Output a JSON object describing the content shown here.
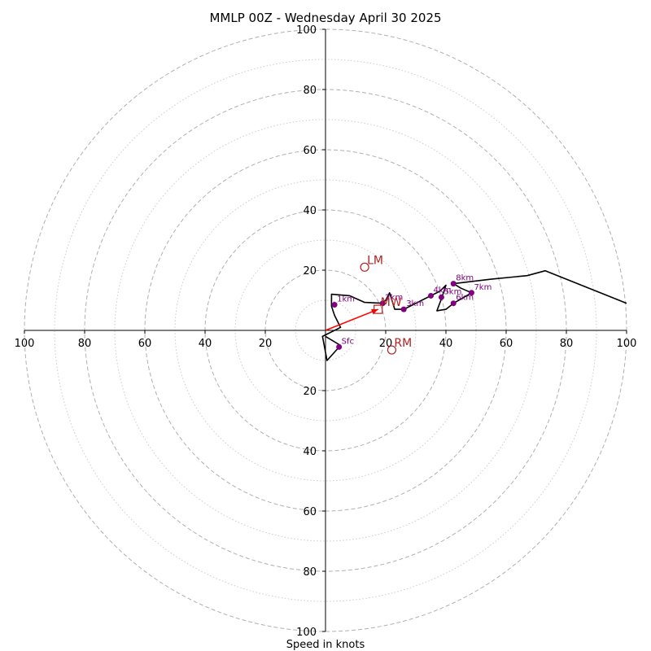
{
  "chart_data": {
    "type": "hodograph",
    "title": "MMLP 00Z - Wednesday April 30 2025",
    "xlabel": "Speed in knots",
    "range": [
      -100,
      100
    ],
    "ring_major": [
      20,
      40,
      60,
      80,
      100
    ],
    "ring_minor": [
      10,
      30,
      50,
      70,
      90
    ],
    "x_tick_labels": [
      "100",
      "80",
      "60",
      "40",
      "20",
      "20",
      "40",
      "60",
      "80",
      "100"
    ],
    "x_tick_values": [
      -100,
      -80,
      -60,
      -40,
      -20,
      20,
      40,
      60,
      80,
      100
    ],
    "y_tick_labels": [
      "100",
      "80",
      "60",
      "40",
      "20",
      "20",
      "40",
      "60",
      "80",
      "100"
    ],
    "y_tick_values": [
      100,
      80,
      60,
      40,
      20,
      -20,
      -40,
      -60,
      -80,
      -100
    ],
    "colors": {
      "trace": "#000000",
      "height_markers": "#800080",
      "storm_motion": "#b22222",
      "mean_wind_vector": "#ff0000",
      "grid": "#b0b0b0"
    },
    "hodograph_trace": [
      [
        0,
        -2
      ],
      [
        5,
        -5
      ],
      [
        0.5,
        -10
      ],
      [
        -1,
        -2
      ],
      [
        5,
        1
      ],
      [
        3,
        5
      ],
      [
        2,
        8
      ],
      [
        2,
        12
      ],
      [
        8,
        11.5
      ],
      [
        13,
        9.3
      ],
      [
        19,
        9
      ],
      [
        20,
        10
      ],
      [
        21.3,
        12.5
      ],
      [
        23,
        7
      ],
      [
        26,
        7
      ],
      [
        30,
        9
      ],
      [
        35,
        11.5
      ],
      [
        38,
        13
      ],
      [
        40,
        15
      ],
      [
        38.5,
        10.5
      ],
      [
        37,
        6.5
      ],
      [
        40,
        7
      ],
      [
        42.5,
        9
      ],
      [
        46,
        11
      ],
      [
        48.5,
        12.5
      ],
      [
        45,
        14
      ],
      [
        42.5,
        15.5
      ],
      [
        55,
        17
      ],
      [
        67,
        18.2
      ],
      [
        73,
        19.8
      ],
      [
        100,
        9
      ]
    ],
    "height_points": [
      {
        "label": "Sfc",
        "u": 4.5,
        "v": -5.5
      },
      {
        "label": "1km",
        "u": 3,
        "v": 8.5
      },
      {
        "label": "2km",
        "u": 19,
        "v": 9
      },
      {
        "label": "3km",
        "u": 26,
        "v": 7
      },
      {
        "label": "4km",
        "u": 35,
        "v": 11.5
      },
      {
        "label": "5km",
        "u": 38.5,
        "v": 11
      },
      {
        "label": "6km",
        "u": 42.5,
        "v": 9
      },
      {
        "label": "7km",
        "u": 48.5,
        "v": 12.5
      },
      {
        "label": "8km",
        "u": 42.5,
        "v": 15.5
      }
    ],
    "storm_motion": [
      {
        "label": "LM",
        "u": 13,
        "v": 21,
        "marker": "circle"
      },
      {
        "label": "RM",
        "u": 22,
        "v": -6.5,
        "marker": "circle"
      },
      {
        "label": "MW",
        "u": 17.5,
        "v": 7,
        "marker": "square"
      }
    ],
    "mean_wind_vector": {
      "u": 17.5,
      "v": 7
    }
  }
}
